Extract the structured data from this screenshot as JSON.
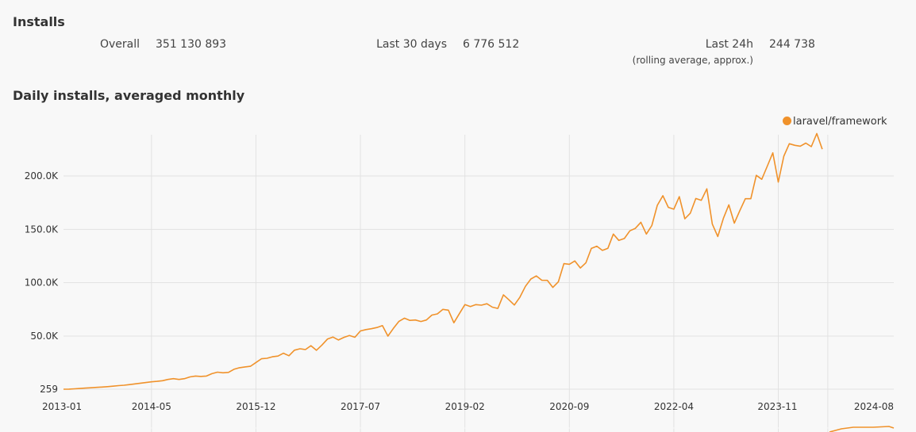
{
  "installs": {
    "heading": "Installs",
    "overall_label": "Overall",
    "overall_value": "351 130 893",
    "last30_label": "Last 30 days",
    "last30_value": "6 776 512",
    "last24_label": "Last 24h",
    "last24_value": "244 738",
    "last24_note": "(rolling average, approx.)"
  },
  "chart_heading": "Daily installs, averaged monthly",
  "colors": {
    "series": "#f0922b",
    "grid": "#e2e2e2",
    "background": "#f8f8f8"
  },
  "chart_data": {
    "type": "line",
    "title": "Daily installs, averaged monthly",
    "xlabel": "",
    "ylabel": "",
    "legend": "top-right",
    "grid": true,
    "x_ticks": [
      "2013-01",
      "2014-05",
      "2015-12",
      "2017-07",
      "2019-02",
      "2020-09",
      "2022-04",
      "2023-11",
      "2024-08"
    ],
    "y_ticks": [
      "259",
      "50.0K",
      "100.0K",
      "150.0K",
      "200.0K"
    ],
    "y_tick_values": [
      259,
      50000,
      100000,
      150000,
      200000
    ],
    "ylim": [
      259,
      240000
    ],
    "x_start": "2013-01",
    "series": [
      {
        "name": "laravel/framework",
        "values": [
          259,
          350,
          600,
          900,
          1300,
          1600,
          2000,
          2300,
          2600,
          3100,
          3600,
          4000,
          4600,
          5200,
          5900,
          6500,
          7200,
          7600,
          8200,
          9400,
          10100,
          9400,
          10100,
          11800,
          12600,
          12200,
          12600,
          14800,
          16200,
          15600,
          16000,
          18900,
          20400,
          21100,
          21700,
          25300,
          28800,
          29200,
          30600,
          31300,
          34000,
          31600,
          36800,
          38100,
          37400,
          41000,
          36700,
          41600,
          47200,
          49100,
          46400,
          48800,
          50500,
          48900,
          54800,
          56100,
          56900,
          58000,
          59800,
          50000,
          57200,
          63800,
          66800,
          64700,
          65100,
          63700,
          65100,
          69700,
          70800,
          75000,
          74300,
          62500,
          71100,
          79500,
          77600,
          79500,
          79000,
          80300,
          77100,
          75900,
          88600,
          84000,
          79100,
          86500,
          96600,
          103500,
          106400,
          102300,
          102200,
          95600,
          100800,
          117900,
          117300,
          120400,
          113800,
          118600,
          132100,
          134200,
          130300,
          132200,
          145600,
          139600,
          141400,
          148600,
          150900,
          156600,
          145600,
          153600,
          172500,
          181500,
          170600,
          168900,
          180600,
          159900,
          165200,
          178900,
          177200,
          188000,
          154900,
          143300,
          160200,
          173000,
          155800,
          167500,
          178700,
          178700,
          200600,
          196900,
          209300,
          221700,
          194300,
          218600,
          230200,
          228700,
          227900,
          230800,
          227500,
          239700,
          225100
        ]
      }
    ]
  }
}
